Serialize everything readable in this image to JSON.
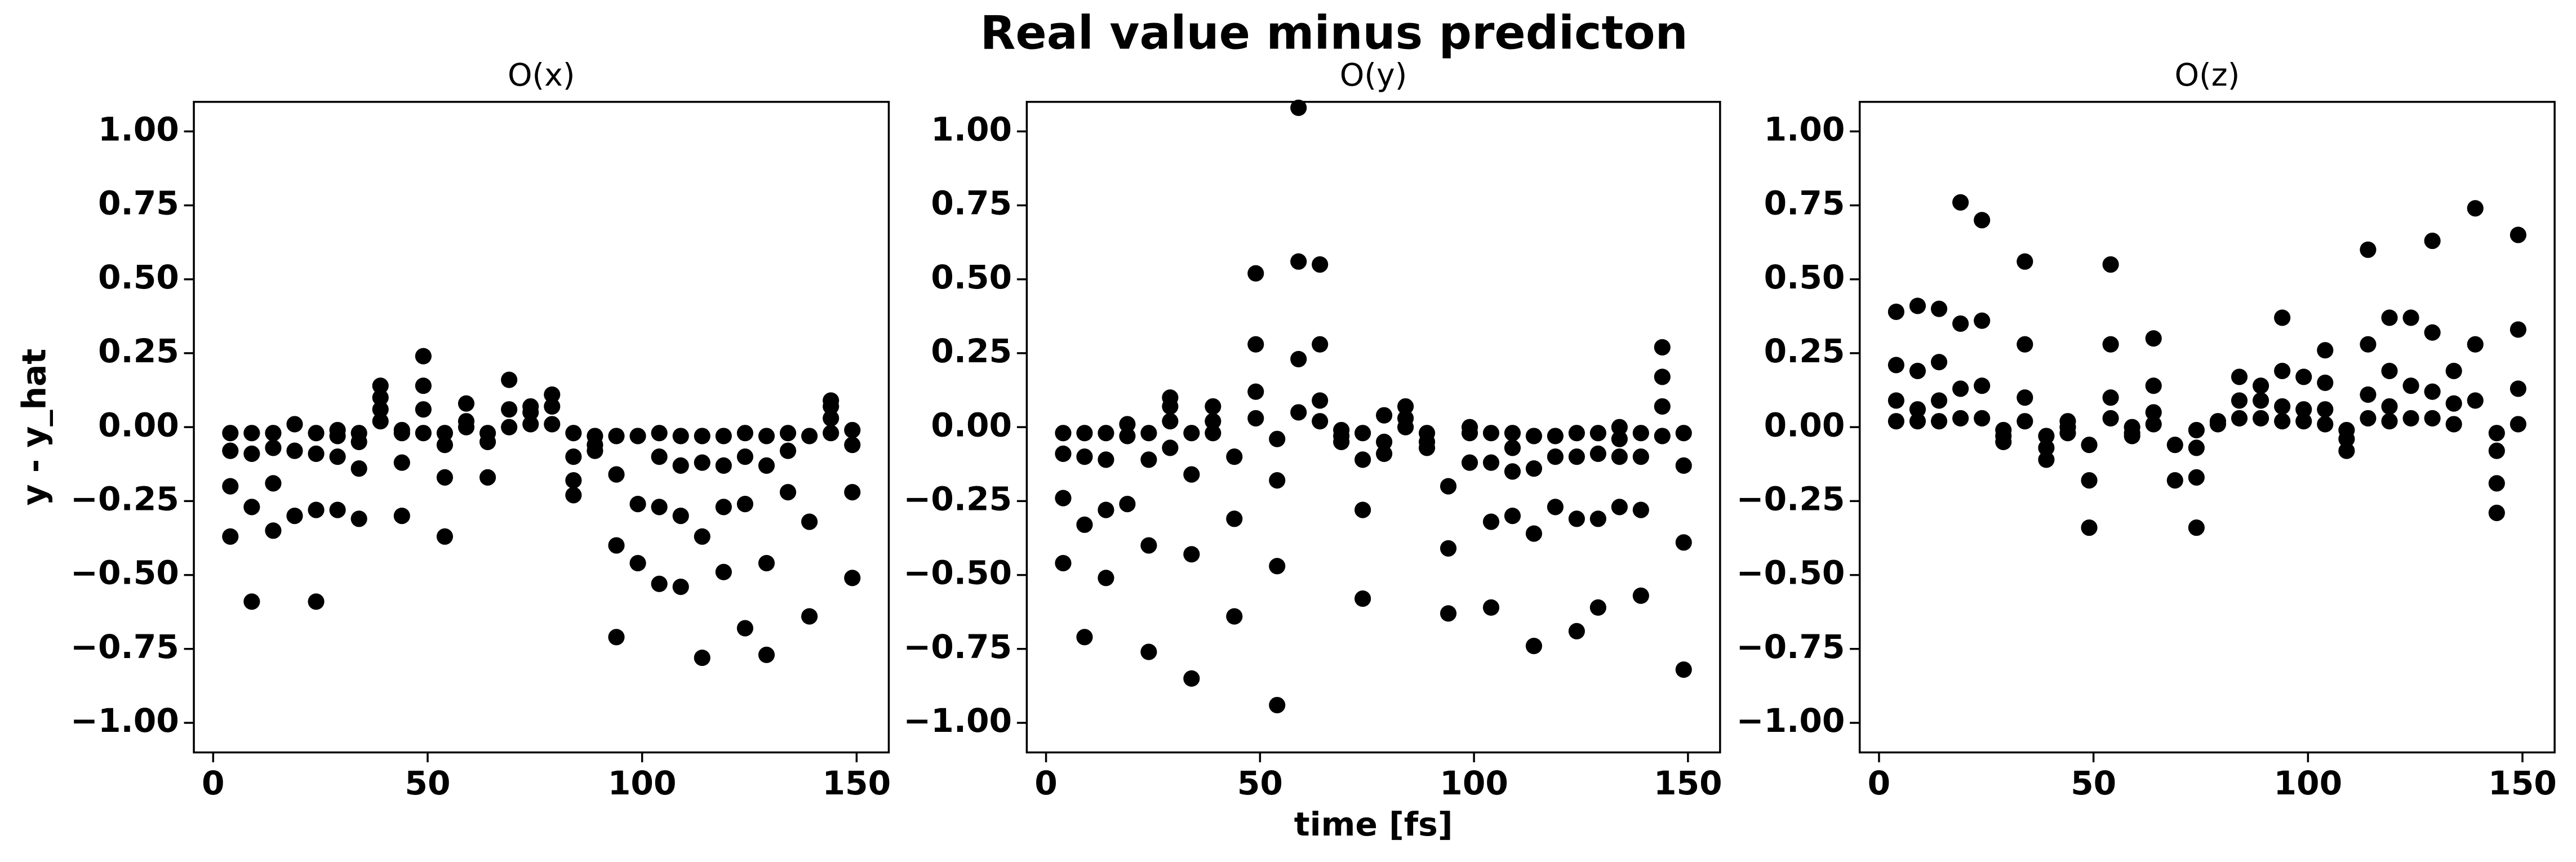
{
  "title": "Real value minus predicton",
  "chart_data": [
    {
      "type": "scatter",
      "title": "O(x)",
      "ylabel": "y - y_hat",
      "color": "#000000",
      "xlim": [
        -4.5,
        157.5
      ],
      "ylim": [
        -1.1,
        1.1
      ],
      "xticks": [
        0,
        50,
        100,
        150
      ],
      "yticks": [
        {
          "value": -1,
          "label": "−1.00"
        },
        {
          "value": -0.75,
          "label": "−0.75"
        },
        {
          "value": -0.5,
          "label": "−0.50"
        },
        {
          "value": -0.25,
          "label": "−0.25"
        },
        {
          "value": 0,
          "label": "0.00"
        },
        {
          "value": 0.25,
          "label": "0.25"
        },
        {
          "value": 0.5,
          "label": "0.50"
        },
        {
          "value": 0.75,
          "label": "0.75"
        },
        {
          "value": 1,
          "label": "1.00"
        }
      ],
      "x": [
        4,
        4,
        4,
        4,
        9,
        9,
        9,
        9,
        14,
        14,
        14,
        14,
        19,
        19,
        19,
        24,
        24,
        24,
        24,
        29,
        29,
        29,
        29,
        34,
        34,
        34,
        34,
        39,
        39,
        39,
        39,
        44,
        44,
        44,
        44,
        49,
        49,
        49,
        49,
        54,
        54,
        54,
        54,
        59,
        59,
        59,
        64,
        64,
        64,
        69,
        69,
        69,
        74,
        74,
        74,
        79,
        79,
        79,
        84,
        84,
        84,
        84,
        89,
        89,
        89,
        94,
        94,
        94,
        94,
        99,
        99,
        99,
        104,
        104,
        104,
        104,
        109,
        109,
        109,
        109,
        114,
        114,
        114,
        114,
        119,
        119,
        119,
        119,
        124,
        124,
        124,
        124,
        129,
        129,
        129,
        129,
        134,
        134,
        134,
        139,
        139,
        139,
        144,
        144,
        144,
        144,
        149,
        149,
        149,
        149
      ],
      "values": [
        -0.02,
        -0.08,
        -0.2,
        -0.37,
        -0.02,
        -0.09,
        -0.27,
        -0.59,
        -0.02,
        -0.07,
        -0.19,
        -0.35,
        0.01,
        -0.08,
        -0.3,
        -0.02,
        -0.09,
        -0.28,
        -0.59,
        -0.01,
        -0.03,
        -0.1,
        -0.28,
        -0.02,
        -0.05,
        -0.14,
        -0.31,
        0.02,
        0.06,
        0.1,
        0.14,
        -0.01,
        -0.02,
        -0.12,
        -0.3,
        0.24,
        0.14,
        0.06,
        -0.02,
        -0.02,
        -0.06,
        -0.17,
        -0.37,
        0.02,
        0.08,
        0,
        -0.02,
        -0.05,
        -0.17,
        0.16,
        0.06,
        0,
        0.07,
        0.05,
        0.01,
        0.11,
        0.07,
        0.01,
        -0.02,
        -0.1,
        -0.18,
        -0.23,
        -0.06,
        -0.08,
        -0.03,
        -0.03,
        -0.16,
        -0.4,
        -0.71,
        -0.03,
        -0.26,
        -0.46,
        -0.02,
        -0.1,
        -0.27,
        -0.53,
        -0.03,
        -0.13,
        -0.3,
        -0.54,
        -0.03,
        -0.12,
        -0.37,
        -0.78,
        -0.03,
        -0.13,
        -0.27,
        -0.49,
        -0.02,
        -0.1,
        -0.26,
        -0.68,
        -0.03,
        -0.13,
        -0.46,
        -0.77,
        -0.02,
        -0.08,
        -0.22,
        -0.03,
        -0.32,
        -0.64,
        0.09,
        0.07,
        0.03,
        -0.02,
        -0.01,
        -0.06,
        -0.22,
        -0.51
      ]
    },
    {
      "type": "scatter",
      "title": "O(y)",
      "xlabel": "time [fs]",
      "color": "#000000",
      "xlim": [
        -4.5,
        157.5
      ],
      "ylim": [
        -1.1,
        1.1
      ],
      "xticks": [
        0,
        50,
        100,
        150
      ],
      "yticks": [
        {
          "value": -1,
          "label": "−1.00"
        },
        {
          "value": -0.75,
          "label": "−0.75"
        },
        {
          "value": -0.5,
          "label": "−0.50"
        },
        {
          "value": -0.25,
          "label": "−0.25"
        },
        {
          "value": 0,
          "label": "0.00"
        },
        {
          "value": 0.25,
          "label": "0.25"
        },
        {
          "value": 0.5,
          "label": "0.50"
        },
        {
          "value": 0.75,
          "label": "0.75"
        },
        {
          "value": 1,
          "label": "1.00"
        }
      ],
      "x": [
        4,
        4,
        4,
        4,
        9,
        9,
        9,
        9,
        14,
        14,
        14,
        14,
        19,
        19,
        19,
        24,
        24,
        24,
        24,
        29,
        29,
        29,
        29,
        34,
        34,
        34,
        34,
        39,
        39,
        39,
        44,
        44,
        44,
        49,
        49,
        49,
        49,
        54,
        54,
        54,
        54,
        59,
        59,
        59,
        59,
        64,
        64,
        64,
        64,
        69,
        69,
        69,
        74,
        74,
        74,
        74,
        79,
        79,
        79,
        84,
        84,
        84,
        89,
        89,
        89,
        94,
        94,
        94,
        99,
        99,
        99,
        104,
        104,
        104,
        104,
        109,
        109,
        109,
        109,
        114,
        114,
        114,
        114,
        119,
        119,
        119,
        124,
        124,
        124,
        124,
        129,
        129,
        129,
        129,
        134,
        134,
        134,
        134,
        139,
        139,
        139,
        139,
        144,
        144,
        144,
        144,
        149,
        149,
        149,
        149
      ],
      "values": [
        -0.02,
        -0.09,
        -0.24,
        -0.46,
        -0.02,
        -0.1,
        -0.33,
        -0.71,
        -0.02,
        -0.11,
        -0.28,
        -0.51,
        0.01,
        -0.03,
        -0.26,
        -0.02,
        -0.11,
        -0.4,
        -0.76,
        0.1,
        0.07,
        0.02,
        -0.07,
        -0.02,
        -0.16,
        -0.43,
        -0.85,
        0.07,
        0.02,
        -0.02,
        -0.1,
        -0.31,
        -0.64,
        0.52,
        0.28,
        0.12,
        0.03,
        -0.04,
        -0.18,
        -0.47,
        -0.94,
        1.08,
        0.56,
        0.23,
        0.05,
        0.55,
        0.28,
        0.09,
        0.02,
        -0.01,
        -0.03,
        -0.05,
        -0.02,
        -0.11,
        -0.28,
        -0.58,
        0.04,
        -0.05,
        -0.09,
        0.07,
        0.03,
        0,
        -0.02,
        -0.05,
        -0.07,
        -0.2,
        -0.41,
        -0.63,
        0,
        -0.02,
        -0.12,
        -0.02,
        -0.12,
        -0.32,
        -0.61,
        -0.02,
        -0.07,
        -0.15,
        -0.3,
        -0.03,
        -0.14,
        -0.36,
        -0.74,
        -0.03,
        -0.1,
        -0.27,
        -0.02,
        -0.1,
        -0.31,
        -0.69,
        -0.02,
        -0.09,
        -0.31,
        -0.61,
        0,
        -0.04,
        -0.1,
        -0.27,
        -0.02,
        -0.1,
        -0.28,
        -0.57,
        0.27,
        0.17,
        0.07,
        -0.03,
        -0.02,
        -0.13,
        -0.39,
        -0.82
      ]
    },
    {
      "type": "scatter",
      "title": "O(z)",
      "color": "#000000",
      "xlim": [
        -4.5,
        157.5
      ],
      "ylim": [
        -1.1,
        1.1
      ],
      "xticks": [
        0,
        50,
        100,
        150
      ],
      "yticks": [
        {
          "value": -1,
          "label": "−1.00"
        },
        {
          "value": -0.75,
          "label": "−0.75"
        },
        {
          "value": -0.5,
          "label": "−0.50"
        },
        {
          "value": -0.25,
          "label": "−0.25"
        },
        {
          "value": 0,
          "label": "0.00"
        },
        {
          "value": 0.25,
          "label": "0.25"
        },
        {
          "value": 0.5,
          "label": "0.50"
        },
        {
          "value": 0.75,
          "label": "0.75"
        },
        {
          "value": 1,
          "label": "1.00"
        }
      ],
      "x": [
        4,
        4,
        4,
        4,
        9,
        9,
        9,
        9,
        14,
        14,
        14,
        14,
        19,
        19,
        19,
        19,
        24,
        24,
        24,
        24,
        29,
        29,
        29,
        34,
        34,
        34,
        34,
        39,
        39,
        39,
        44,
        44,
        44,
        49,
        49,
        49,
        54,
        54,
        54,
        54,
        59,
        59,
        59,
        64,
        64,
        64,
        64,
        69,
        69,
        74,
        74,
        74,
        74,
        79,
        79,
        84,
        84,
        84,
        89,
        89,
        89,
        94,
        94,
        94,
        94,
        99,
        99,
        99,
        104,
        104,
        104,
        104,
        109,
        109,
        109,
        114,
        114,
        114,
        114,
        119,
        119,
        119,
        119,
        124,
        124,
        124,
        129,
        129,
        129,
        129,
        134,
        134,
        134,
        139,
        139,
        139,
        144,
        144,
        144,
        144,
        149,
        149,
        149,
        149
      ],
      "values": [
        0.39,
        0.21,
        0.09,
        0.02,
        0.41,
        0.19,
        0.06,
        0.02,
        0.4,
        0.22,
        0.09,
        0.02,
        0.76,
        0.35,
        0.13,
        0.03,
        0.7,
        0.36,
        0.14,
        0.03,
        -0.01,
        -0.03,
        -0.05,
        0.56,
        0.28,
        0.1,
        0.02,
        -0.03,
        -0.07,
        -0.11,
        0.02,
        0,
        -0.02,
        -0.06,
        -0.18,
        -0.34,
        0.55,
        0.28,
        0.1,
        0.03,
        0,
        -0.02,
        -0.03,
        0.3,
        0.14,
        0.05,
        0.01,
        -0.06,
        -0.18,
        -0.01,
        -0.07,
        -0.17,
        -0.34,
        0.02,
        0.01,
        0.17,
        0.09,
        0.03,
        0.14,
        0.09,
        0.03,
        0.37,
        0.19,
        0.07,
        0.02,
        0.17,
        0.06,
        0.02,
        0.26,
        0.15,
        0.06,
        0.01,
        -0.01,
        -0.04,
        -0.08,
        0.6,
        0.28,
        0.11,
        0.03,
        0.37,
        0.19,
        0.07,
        0.02,
        0.37,
        0.14,
        0.03,
        0.63,
        0.32,
        0.12,
        0.03,
        0.19,
        0.08,
        0.01,
        0.74,
        0.28,
        0.09,
        -0.02,
        -0.08,
        -0.19,
        -0.29,
        0.65,
        0.33,
        0.13,
        0.01
      ]
    }
  ]
}
